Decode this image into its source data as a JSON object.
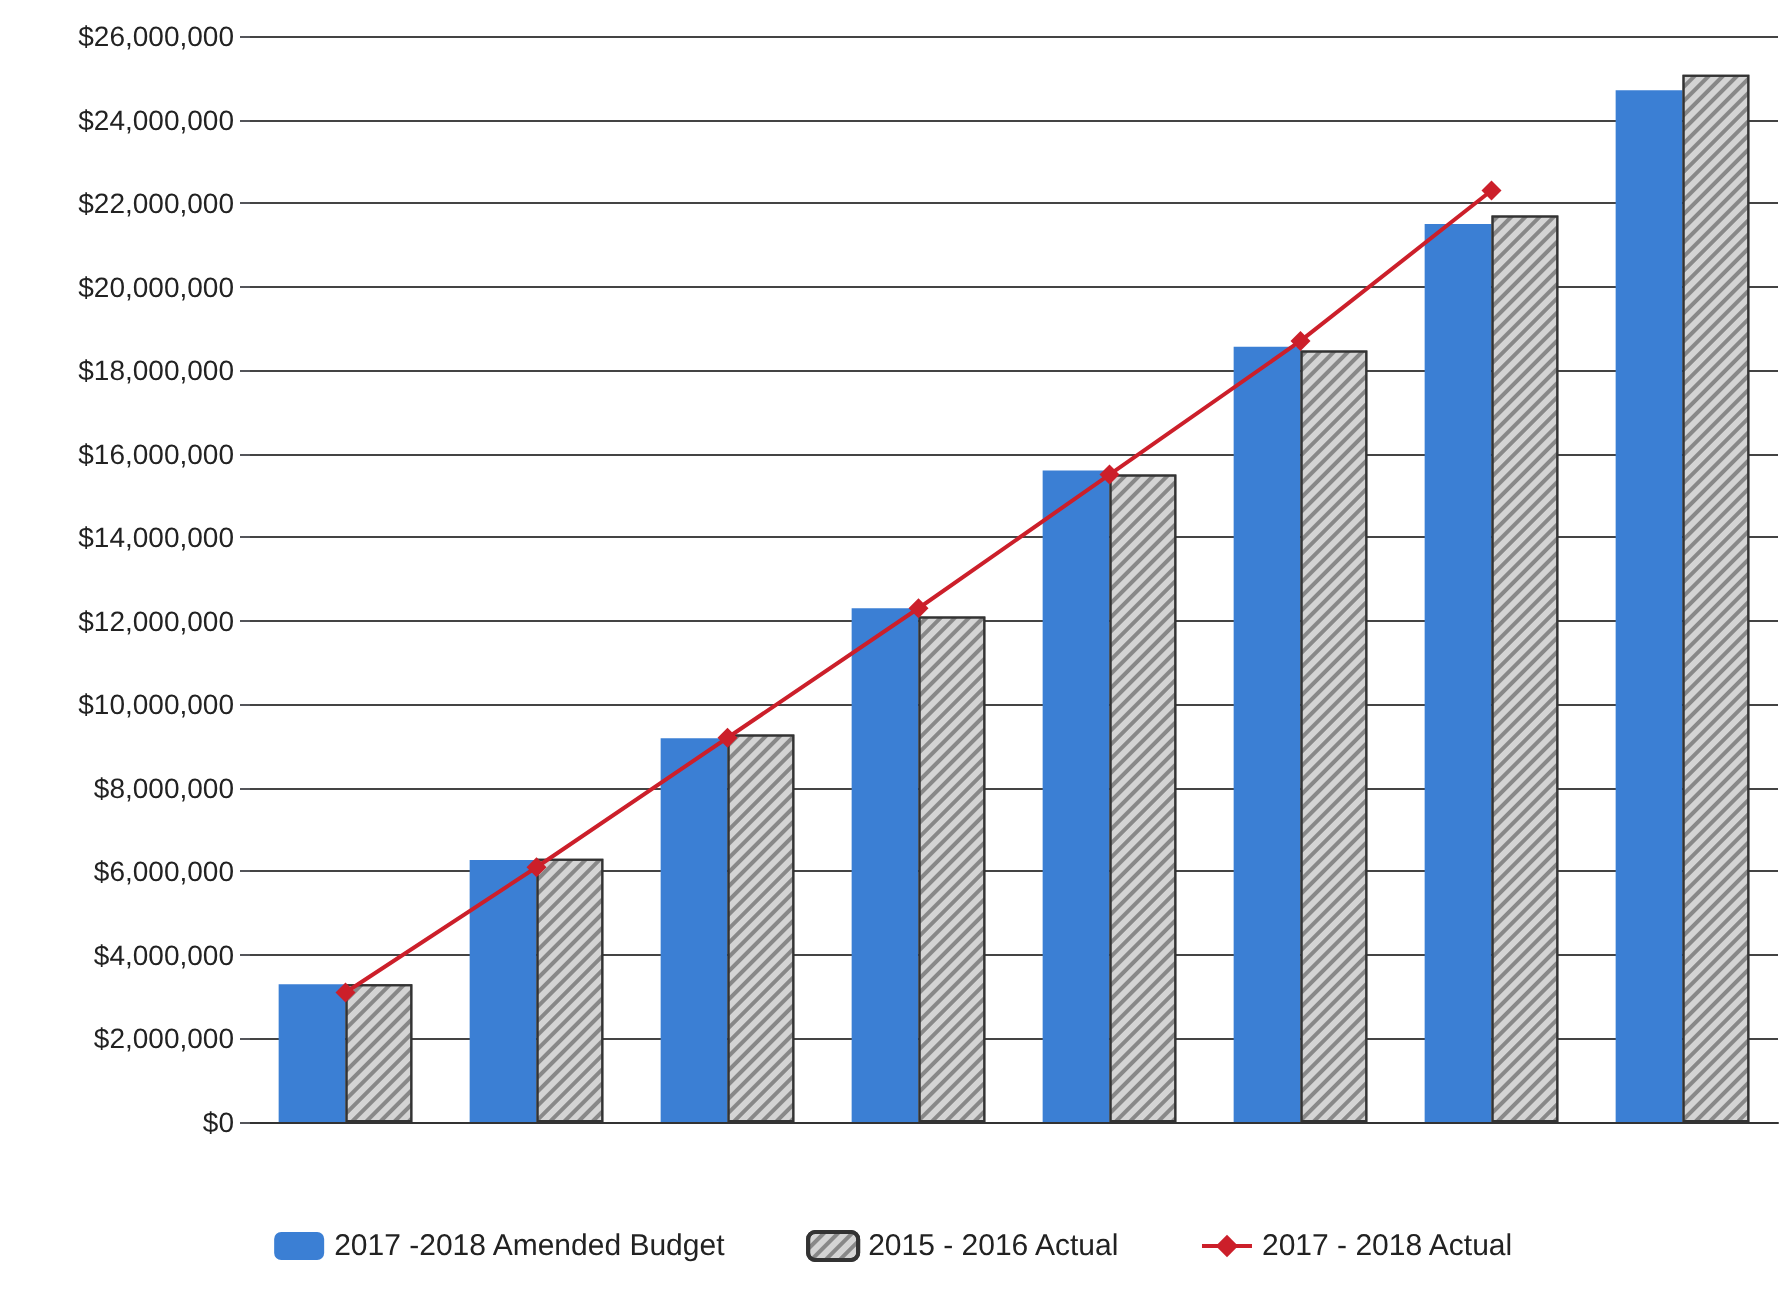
{
  "chart_data": {
    "type": "bar",
    "categories": [
      null,
      null,
      null,
      null,
      null,
      null,
      null,
      null
    ],
    "series": [
      {
        "name": "2017 -2018 Amended Budget",
        "color": "#3b7fd4",
        "values": [
          3300000,
          6270000,
          9190000,
          12300000,
          15600000,
          18560000,
          21500000,
          24700000
        ]
      },
      {
        "name": "2015 - 2016 Actual",
        "color": "#d4d4d4",
        "values": [
          3300000,
          6300000,
          9280000,
          12100000,
          15500000,
          18470000,
          21700000,
          25070000
        ]
      },
      {
        "name": "2017 - 2018 Actual",
        "type": "line",
        "color": "#cc1f2a",
        "marker": "diamond",
        "line_style": "solid",
        "values": [
          3100000,
          6100000,
          9200000,
          12300000,
          15500000,
          18700000,
          22300000,
          null
        ]
      }
    ],
    "ylim": [
      0,
      26000000
    ],
    "yticks": [
      {
        "value": 0,
        "label": "$0"
      },
      {
        "value": 2000000,
        "label": "$2,000,000"
      },
      {
        "value": 4000000,
        "label": "$4,000,000"
      },
      {
        "value": 6000000,
        "label": "$6,000,000"
      },
      {
        "value": 8000000,
        "label": "$8,000,000"
      },
      {
        "value": 10000000,
        "label": "$10,000,000"
      },
      {
        "value": 12000000,
        "label": "$12,000,000"
      },
      {
        "value": 14000000,
        "label": "$14,000,000"
      },
      {
        "value": 16000000,
        "label": "$16,000,000"
      },
      {
        "value": 18000000,
        "label": "$18,000,000"
      },
      {
        "value": 20000000,
        "label": "$20,000,000"
      },
      {
        "value": 22000000,
        "label": "$22,000,000"
      },
      {
        "value": 24000000,
        "label": "$24,000,000"
      },
      {
        "value": 26000000,
        "label": "$26,000,000"
      }
    ],
    "grid": "y",
    "legend": "bottom"
  }
}
